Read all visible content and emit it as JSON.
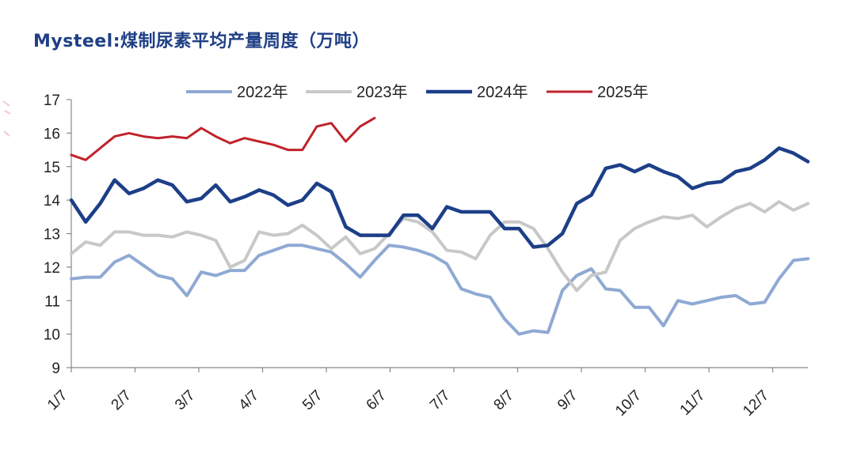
{
  "chart_data": {
    "type": "line",
    "title": "Mysteel:煤制尿素平均产量周度（万吨）",
    "ylim": [
      9,
      17
    ],
    "yticks": [
      9,
      10,
      11,
      12,
      13,
      14,
      15,
      16,
      17
    ],
    "xticks": [
      "1/7",
      "2/7",
      "3/7",
      "4/7",
      "5/7",
      "6/7",
      "7/7",
      "8/7",
      "9/7",
      "10/7",
      "11/7",
      "12/7"
    ],
    "legend_position": "top",
    "grid": false,
    "series": [
      {
        "name": "2022年",
        "color": "#8fa9d3",
        "values": [
          11.65,
          11.7,
          11.7,
          12.15,
          12.35,
          12.05,
          11.75,
          11.65,
          11.15,
          11.85,
          11.75,
          11.9,
          11.9,
          12.35,
          12.5,
          12.65,
          12.65,
          12.55,
          12.45,
          12.1,
          11.7,
          12.2,
          12.65,
          12.6,
          12.5,
          12.35,
          12.1,
          11.35,
          11.2,
          11.1,
          10.45,
          10.0,
          10.1,
          10.05,
          11.3,
          11.75,
          11.95,
          11.35,
          11.3,
          10.8,
          10.8,
          10.25,
          11.0,
          10.9,
          11.0,
          11.1,
          11.15,
          10.9,
          10.95,
          11.65,
          12.2,
          12.25
        ]
      },
      {
        "name": "2023年",
        "color": "#c8c8c8",
        "values": [
          12.4,
          12.75,
          12.65,
          13.05,
          13.05,
          12.95,
          12.95,
          12.9,
          13.05,
          12.95,
          12.8,
          12.0,
          12.2,
          13.05,
          12.95,
          13.0,
          13.25,
          12.95,
          12.55,
          12.9,
          12.4,
          12.55,
          13.0,
          13.45,
          13.35,
          13.05,
          12.5,
          12.45,
          12.25,
          12.95,
          13.35,
          13.35,
          13.15,
          12.55,
          11.85,
          11.3,
          11.75,
          11.85,
          12.8,
          13.15,
          13.35,
          13.5,
          13.45,
          13.55,
          13.2,
          13.5,
          13.75,
          13.9,
          13.65,
          13.95,
          13.7,
          13.9
        ]
      },
      {
        "name": "2024年",
        "color": "#1d3f88",
        "values": [
          14.0,
          13.35,
          13.9,
          14.6,
          14.2,
          14.35,
          14.6,
          14.45,
          13.95,
          14.05,
          14.45,
          13.95,
          14.1,
          14.3,
          14.15,
          13.85,
          14.0,
          14.5,
          14.25,
          13.2,
          12.95,
          12.95,
          12.95,
          13.55,
          13.55,
          13.15,
          13.8,
          13.65,
          13.65,
          13.65,
          13.15,
          13.15,
          12.6,
          12.65,
          13.0,
          13.9,
          14.15,
          14.95,
          15.05,
          14.85,
          15.05,
          14.85,
          14.7,
          14.35,
          14.5,
          14.55,
          14.85,
          14.95,
          15.2,
          15.55,
          15.4,
          15.15
        ]
      },
      {
        "name": "2025年",
        "color": "#c0232c",
        "values": [
          15.35,
          15.2,
          15.55,
          15.9,
          16.0,
          15.9,
          15.85,
          15.9,
          15.85,
          16.15,
          15.9,
          15.7,
          15.85,
          15.75,
          15.65,
          15.5,
          15.5,
          16.2,
          16.3,
          15.75,
          16.2,
          16.45
        ]
      }
    ]
  }
}
